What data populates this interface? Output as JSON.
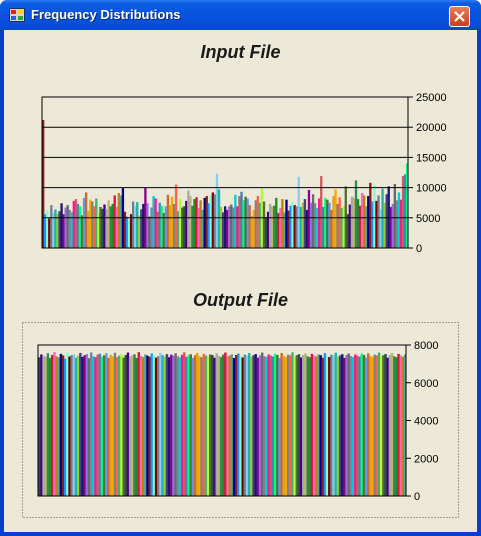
{
  "window": {
    "title": "Frequency Distributions"
  },
  "icons": {
    "app": "app-icon",
    "close": "close-icon"
  },
  "chart_data": [
    {
      "type": "bar",
      "title": "Input File",
      "ylim": [
        0,
        25000
      ],
      "yticks": [
        "25000",
        "20000",
        "15000",
        "10000",
        "5000",
        "0"
      ],
      "grid": true,
      "values": [
        21200,
        5600,
        6200,
        4900,
        7100,
        5800,
        6400,
        5700,
        6100,
        7400,
        5600,
        6700,
        7100,
        6300,
        5900,
        7800,
        8100,
        7300,
        6900,
        5400,
        8300,
        9200,
        6100,
        8000,
        7700,
        6900,
        8200,
        5800,
        6800,
        6500,
        7200,
        6400,
        7900,
        6900,
        7300,
        8700,
        6800,
        9100,
        8700,
        9900,
        6000,
        5200,
        4700,
        5600,
        7700,
        6900,
        7600,
        5400,
        6400,
        7300,
        10000,
        7400,
        5200,
        6700,
        8600,
        8200,
        6000,
        7500,
        7000,
        5800,
        6900,
        8800,
        7100,
        8500,
        7300,
        10500,
        6100,
        8200,
        6700,
        6900,
        7800,
        9500,
        8600,
        7000,
        8100,
        8400,
        6600,
        7900,
        6300,
        8300,
        8600,
        7400,
        8700,
        9200,
        8900,
        12300,
        9700,
        6800,
        5900,
        6900,
        6300,
        6900,
        7200,
        6700,
        8800,
        6900,
        8600,
        9300,
        7900,
        8500,
        8200,
        7100,
        5300,
        6300,
        7900,
        8600,
        7500,
        10000,
        7700,
        5100,
        6000,
        7300,
        6900,
        7000,
        8300,
        5800,
        6600,
        8100,
        5900,
        8000,
        6200,
        7000,
        7700,
        7100,
        6900,
        11800,
        6800,
        7500,
        8100,
        6300,
        9600,
        7500,
        8900,
        7400,
        6600,
        8200,
        11900,
        6800,
        8300,
        8000,
        7500,
        6300,
        8600,
        9700,
        7300,
        8400,
        6600,
        6900,
        10200,
        5600,
        7200,
        8500,
        8300,
        11200,
        8100,
        7000,
        9100,
        8700,
        6900,
        8600,
        10800,
        7700,
        10500,
        7800,
        8700,
        6400,
        9800,
        7500,
        8900,
        10200,
        6800,
        7300,
        10600,
        7900,
        9200,
        8000,
        11900,
        12200,
        14000
      ]
    },
    {
      "type": "bar",
      "title": "Output File",
      "ylim": [
        0,
        8000
      ],
      "yticks": [
        "8000",
        "6000",
        "4000",
        "2000",
        "0"
      ],
      "grid": false,
      "values": [
        7350,
        7500,
        7420,
        7380,
        7560,
        7310,
        7470,
        7620,
        7400,
        7350,
        7530,
        7450,
        7280,
        7600,
        7390,
        7470,
        7510,
        7330,
        7440,
        7580,
        7370,
        7460,
        7520,
        7300,
        7610,
        7410,
        7350,
        7490,
        7540,
        7380,
        7450,
        7570,
        7320,
        7480,
        7410,
        7590,
        7360,
        7440,
        7520,
        7330,
        7470,
        7600,
        7390,
        7450,
        7510,
        7310,
        7620,
        7420,
        7360,
        7500,
        7440,
        7380,
        7550,
        7470,
        7330,
        7410,
        7580,
        7460,
        7390,
        7520,
        7350,
        7490,
        7430,
        7560,
        7400,
        7340,
        7480,
        7610,
        7370,
        7450,
        7510,
        7320,
        7460,
        7580,
        7400,
        7350,
        7530,
        7440,
        7380,
        7500,
        7470,
        7330,
        7560,
        7420,
        7360,
        7490,
        7600,
        7390,
        7450,
        7510,
        7310,
        7470,
        7550,
        7400,
        7340,
        7490,
        7430,
        7570,
        7380,
        7460,
        7520,
        7330,
        7450,
        7600,
        7410,
        7360,
        7500,
        7440,
        7390,
        7540,
        7470,
        7320,
        7580,
        7420,
        7370,
        7490,
        7450,
        7610,
        7380,
        7460,
        7510,
        7340,
        7470,
        7560,
        7400,
        7350,
        7530,
        7440,
        7390,
        7500,
        7460,
        7330,
        7570,
        7420,
        7360,
        7490,
        7440,
        7590,
        7380,
        7450,
        7510,
        7320,
        7470,
        7550,
        7410,
        7360,
        7500,
        7430,
        7380,
        7540,
        7470,
        7340,
        7560,
        7420,
        7370,
        7490,
        7450,
        7600,
        7390,
        7460,
        7520,
        7330,
        7470,
        7580,
        7400,
        7350,
        7530,
        7440,
        7380,
        7500
      ]
    }
  ]
}
